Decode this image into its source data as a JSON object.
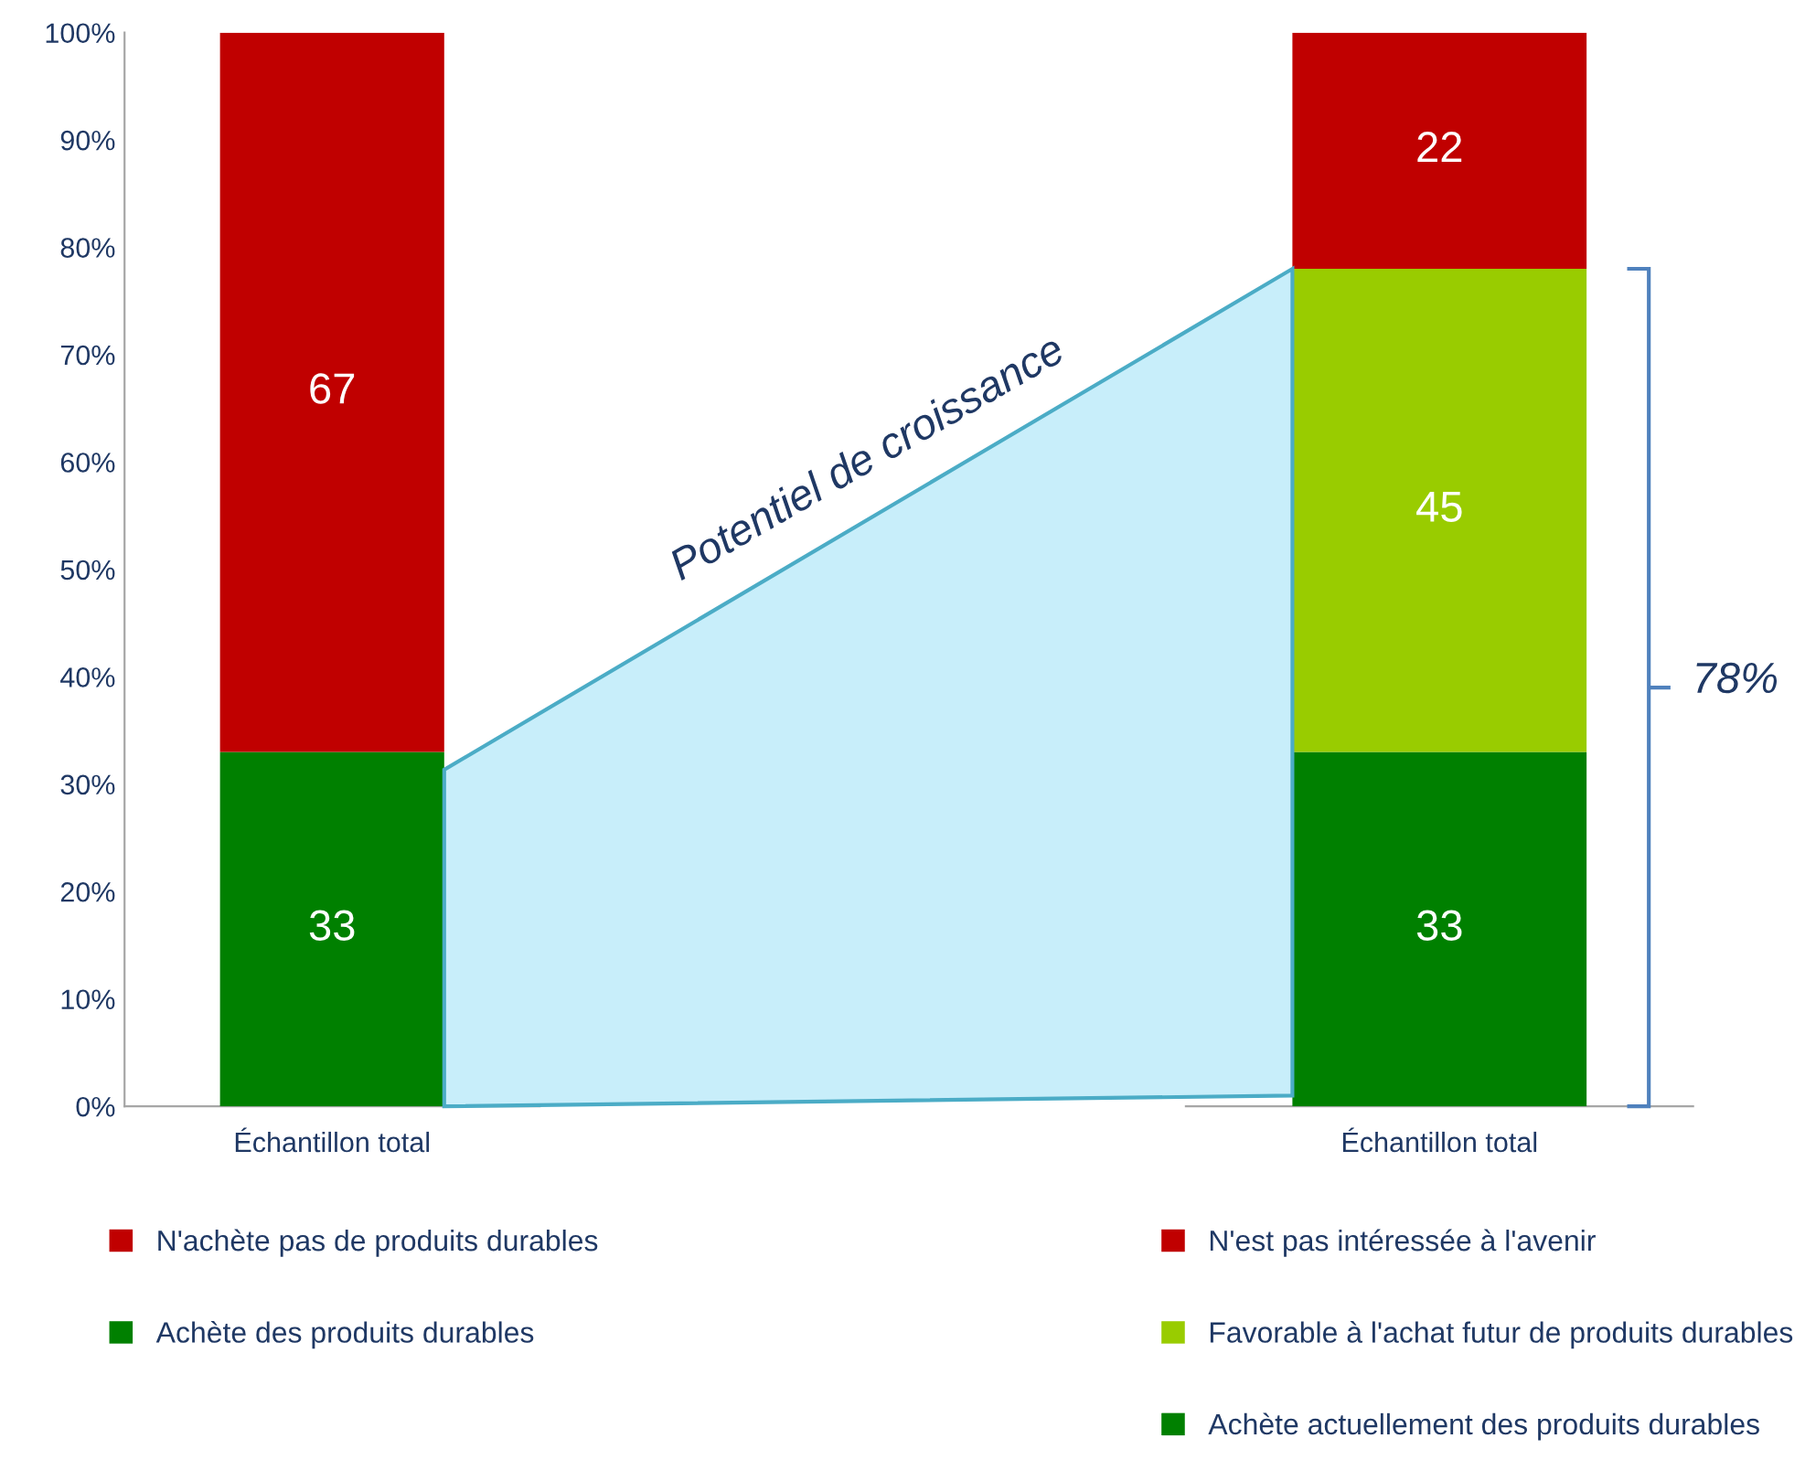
{
  "chart_data": [
    {
      "type": "bar",
      "stacked": true,
      "categories": [
        "Échantillon total"
      ],
      "series": [
        {
          "name": "Achète des produits durables",
          "color": "#008000",
          "values": [
            33
          ]
        },
        {
          "name": "N'achète pas de produits durables",
          "color": "#c00000",
          "values": [
            67
          ]
        }
      ],
      "ylim": [
        0,
        100
      ],
      "yticks": [
        {
          "value": 0,
          "label": "0%"
        },
        {
          "value": 10,
          "label": "10%"
        },
        {
          "value": 20,
          "label": "20%"
        },
        {
          "value": 30,
          "label": "30%"
        },
        {
          "value": 40,
          "label": "40%"
        },
        {
          "value": 50,
          "label": "50%"
        },
        {
          "value": 60,
          "label": "60%"
        },
        {
          "value": 70,
          "label": "70%"
        },
        {
          "value": 80,
          "label": "80%"
        },
        {
          "value": 90,
          "label": "90%"
        },
        {
          "value": 100,
          "label": "100%"
        }
      ],
      "data_labels": true,
      "legend": "bottom",
      "grid": false
    },
    {
      "type": "bar",
      "stacked": true,
      "categories": [
        "Échantillon total"
      ],
      "series": [
        {
          "name": "Achète actuellement des produits durables",
          "color": "#008000",
          "values": [
            33
          ]
        },
        {
          "name": "Favorable à l'achat futur de produits durables",
          "color": "#99cc00",
          "values": [
            45
          ]
        },
        {
          "name": "N'est pas intéressée à l'avenir",
          "color": "#c00000",
          "values": [
            22
          ]
        }
      ],
      "ylim": [
        0,
        100
      ],
      "tick_labels": "x",
      "data_labels": true,
      "legend": "bottom",
      "grid": false,
      "annotations": [
        "Potentiel de croissance",
        "78%"
      ]
    }
  ]
}
